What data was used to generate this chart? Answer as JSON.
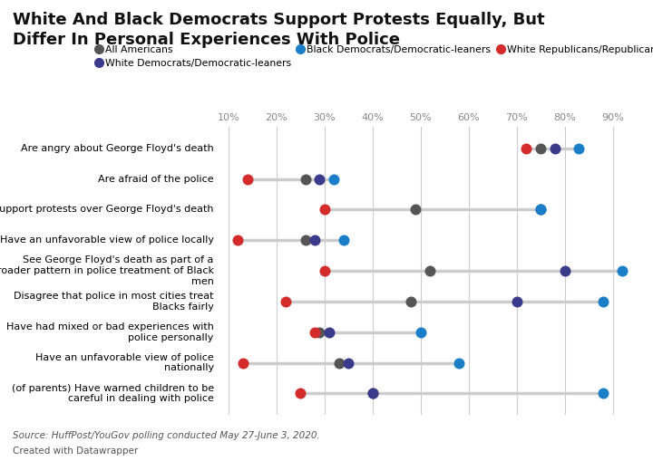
{
  "title": "White And Black Democrats Support Protests Equally, But\nDiffer In Personal Experiences With Police",
  "categories": [
    "Are angry about George Floyd's death",
    "Are afraid of the police",
    "Support protests over George Floyd's death",
    "Have an unfavorable view of police locally",
    "See George Floyd's death as part of a\nbroader pattern in police treatment of Black\nmen",
    "Disagree that police in most cities treat\nBlacks fairly",
    "Have had mixed or bad experiences with\npolice personally",
    "Have an unfavorable view of police\nnationally",
    "(of parents) Have warned children to be\ncareful in dealing with police"
  ],
  "series": {
    "All Americans": [
      75,
      26,
      49,
      26,
      52,
      48,
      29,
      33,
      40
    ],
    "White Democrats/Democratic-leaners": [
      78,
      29,
      75,
      28,
      80,
      70,
      31,
      35,
      40
    ],
    "Black Democrats/Democratic-leaners": [
      83,
      32,
      75,
      34,
      92,
      88,
      50,
      58,
      88
    ],
    "White Republicans/Republican-leaners": [
      72,
      14,
      30,
      12,
      30,
      22,
      28,
      13,
      25
    ]
  },
  "colors": {
    "All Americans": "#555555",
    "White Democrats/Democratic-leaners": "#3b3b8c",
    "Black Democrats/Democratic-leaners": "#1a7ec8",
    "White Republicans/Republican-leaners": "#d42b2b"
  },
  "series_order": [
    "All Americans",
    "White Democrats/Democratic-leaners",
    "Black Democrats/Democratic-leaners",
    "White Republicans/Republican-leaners"
  ],
  "xlim": [
    8,
    95
  ],
  "xticks": [
    10,
    20,
    30,
    40,
    50,
    60,
    70,
    80,
    90
  ],
  "source_text": "Source: HuffPost/YouGov polling conducted May 27-June 3, 2020.",
  "credit_text": "Created with Datawrapper",
  "background_color": "#ffffff",
  "grid_color": "#cccccc",
  "dot_size": 75
}
